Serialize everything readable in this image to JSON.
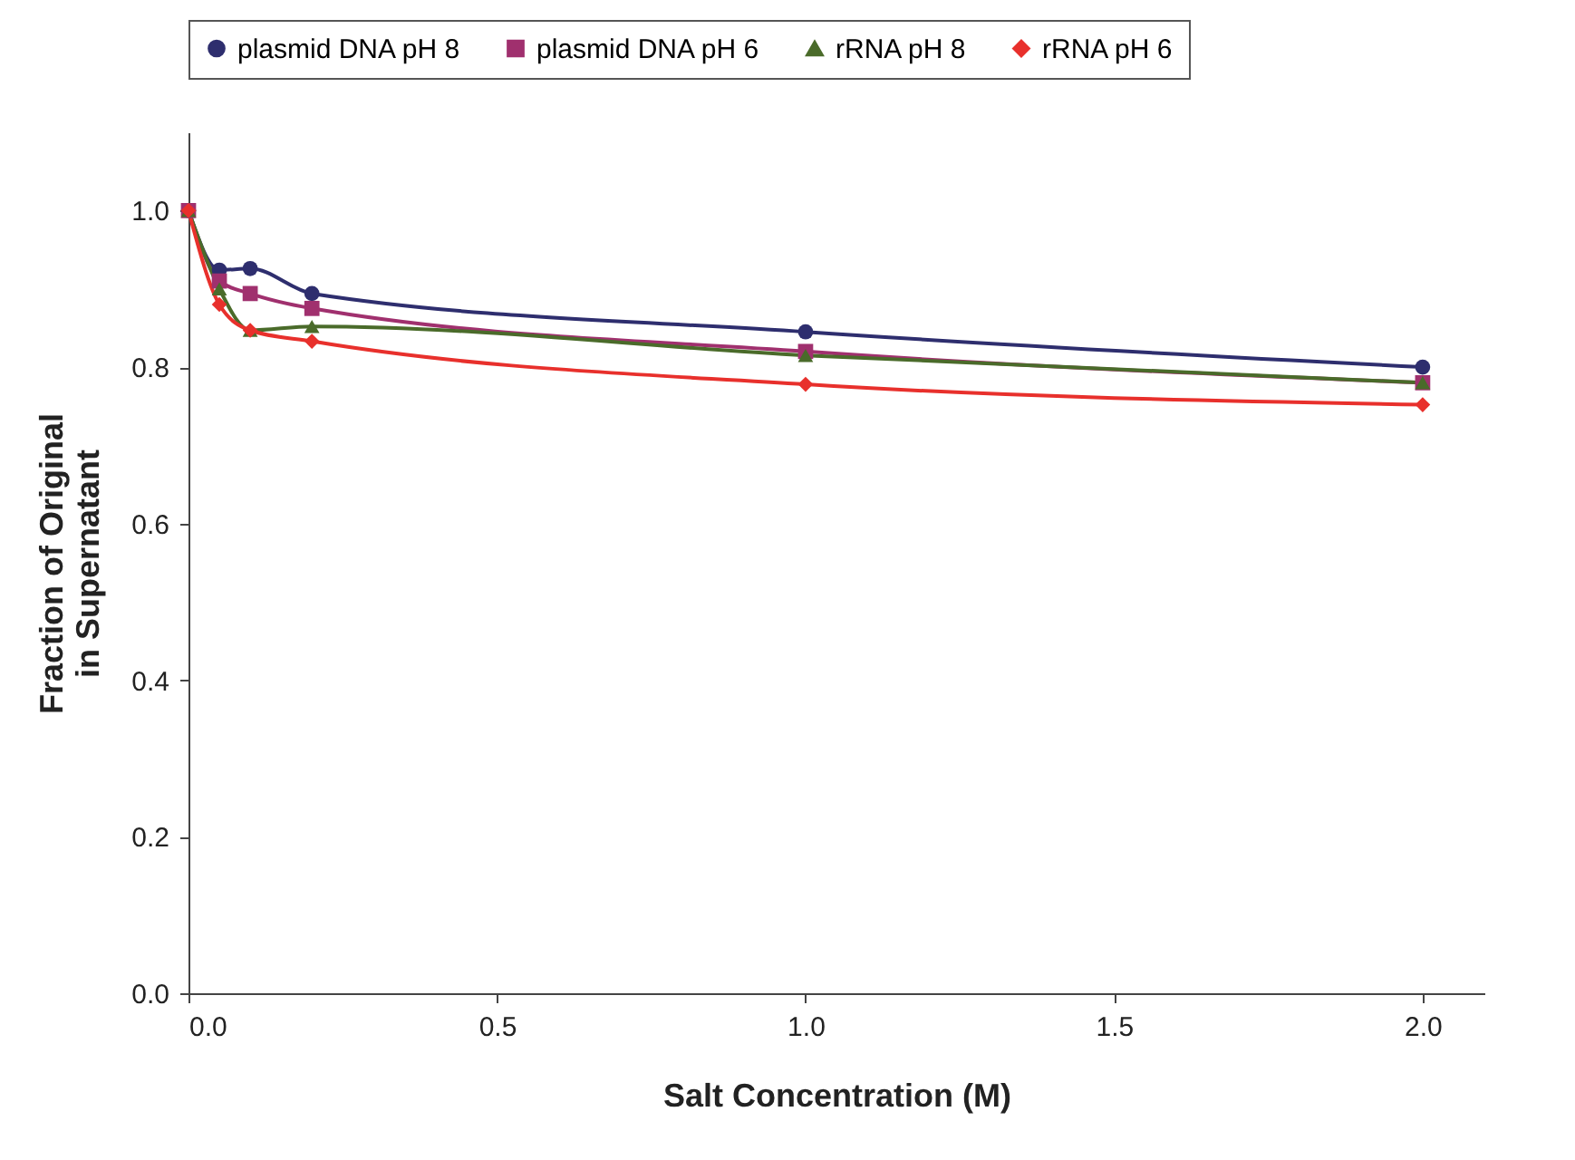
{
  "chart_data": {
    "type": "line",
    "xlabel": "Salt Concentration (M)",
    "ylabel": "Fraction of Original\nin Supernatant",
    "x": [
      0,
      0.05,
      0.1,
      0.2,
      1,
      2
    ],
    "series": [
      {
        "name": "plasmid DNA pH 8",
        "color": "#2e2e6e",
        "marker": "circle",
        "values": [
          1.0,
          0.924,
          0.926,
          0.894,
          0.845,
          0.8
        ]
      },
      {
        "name": "plasmid DNA pH 6",
        "color": "#a0306e",
        "marker": "square",
        "values": [
          1.0,
          0.91,
          0.894,
          0.875,
          0.82,
          0.78
        ]
      },
      {
        "name": "rRNA pH 8",
        "color": "#4a6b2a",
        "marker": "triangle",
        "values": [
          1.0,
          0.9,
          0.847,
          0.852,
          0.815,
          0.78
        ]
      },
      {
        "name": "rRNA pH 6",
        "color": "#e8302c",
        "marker": "diamond",
        "values": [
          1.0,
          0.88,
          0.847,
          0.833,
          0.778,
          0.752
        ]
      }
    ],
    "xlim": [
      0,
      2.1
    ],
    "ylim": [
      0,
      1.1
    ],
    "xticks": [
      {
        "value": 0,
        "label": "0.0"
      },
      {
        "value": 0.5,
        "label": "0.5"
      },
      {
        "value": 1,
        "label": "1.0"
      },
      {
        "value": 1.5,
        "label": "1.5"
      },
      {
        "value": 2,
        "label": "2.0"
      }
    ],
    "yticks": [
      {
        "value": 0,
        "label": "0.0"
      },
      {
        "value": 0.2,
        "label": "0.2"
      },
      {
        "value": 0.4,
        "label": "0.4"
      },
      {
        "value": 0.6,
        "label": "0.6"
      },
      {
        "value": 0.8,
        "label": "0.8"
      },
      {
        "value": 1,
        "label": "1.0"
      }
    ],
    "grid": false,
    "legend": "top",
    "line_style": "solid"
  }
}
